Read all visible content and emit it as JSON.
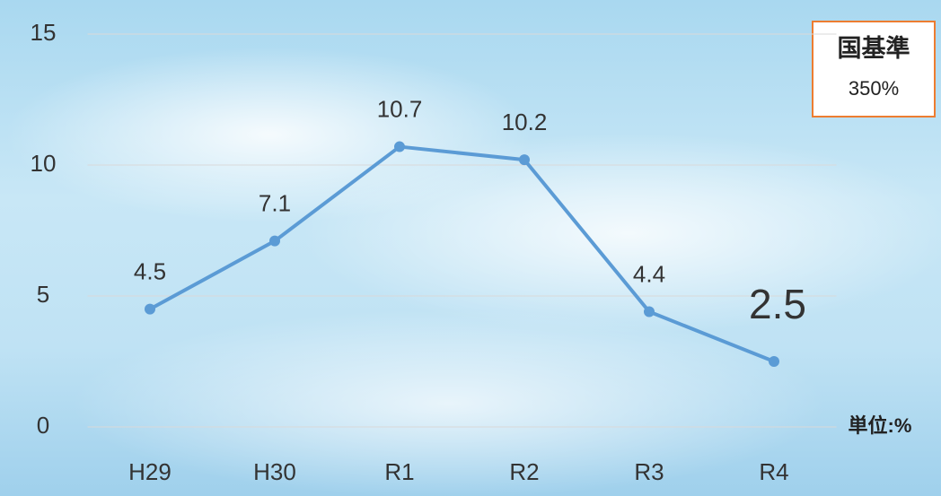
{
  "chart_data": {
    "type": "line",
    "categories": [
      "H29",
      "H30",
      "R1",
      "R2",
      "R3",
      "R4"
    ],
    "values": [
      4.5,
      7.1,
      10.7,
      10.2,
      4.4,
      2.5
    ],
    "color": "#5b9bd5",
    "ylim": [
      0,
      15
    ],
    "yticks": [
      0,
      5,
      10,
      15
    ],
    "grid": true,
    "annotations": [
      "国基準",
      "350%"
    ],
    "unit": "単位:%"
  }
}
